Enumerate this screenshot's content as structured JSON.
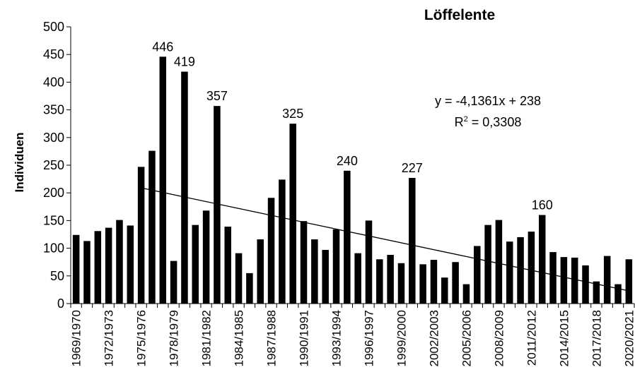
{
  "chart_data": {
    "type": "bar",
    "title": "Löffelente",
    "xlabel": "",
    "ylabel": "Individuen",
    "ylim": [
      0,
      500
    ],
    "yticks": [
      "0",
      "50",
      "100",
      "150",
      "200",
      "250",
      "300",
      "350",
      "400",
      "450",
      "500"
    ],
    "categories": [
      "1969/1970",
      "1970/1971",
      "1971/1972",
      "1972/1973",
      "1973/1974",
      "1974/1975",
      "1975/1976",
      "1976/1977",
      "1977/1978",
      "1978/1979",
      "1979/1980",
      "1980/1981",
      "1981/1982",
      "1982/1983",
      "1983/1984",
      "1984/1985",
      "1985/1986",
      "1986/1987",
      "1987/1988",
      "1988/1989",
      "1989/1990",
      "1990/1991",
      "1991/1992",
      "1992/1993",
      "1993/1994",
      "1994/1995",
      "1995/1996",
      "1996/1997",
      "1997/1998",
      "1998/1999",
      "1999/2000",
      "2000/2001",
      "2001/2002",
      "2002/2003",
      "2003/2004",
      "2004/2005",
      "2005/2006",
      "2006/2007",
      "2007/2008",
      "2008/2009",
      "2009/2010",
      "2010/2011",
      "2011/2012",
      "2012/2013",
      "2013/2014",
      "2014/2015",
      "2015/2016",
      "2016/2017",
      "2017/2018",
      "2018/2019",
      "2019/2020",
      "2020/2021"
    ],
    "tick_labels": [
      "1969/1970",
      "1972/1973",
      "1975/1976",
      "1978/1979",
      "1981/1982",
      "1984/1985",
      "1987/1988",
      "1990/1991",
      "1993/1994",
      "1996/1997",
      "1999/2000",
      "2002/2003",
      "2005/2006",
      "2008/2009",
      "2011/2012",
      "2014/2015",
      "2017/2018",
      "2020/2021"
    ],
    "values": [
      124,
      113,
      131,
      137,
      151,
      141,
      247,
      276,
      446,
      77,
      419,
      142,
      168,
      357,
      139,
      91,
      55,
      116,
      191,
      224,
      325,
      149,
      116,
      97,
      134,
      240,
      91,
      150,
      80,
      88,
      73,
      227,
      71,
      79,
      47,
      75,
      35,
      104,
      142,
      151,
      112,
      120,
      130,
      160,
      93,
      84,
      83,
      69,
      40,
      86,
      35,
      80
    ],
    "data_labels": [
      {
        "category": "1977/1978",
        "text": "446"
      },
      {
        "category": "1979/1980",
        "text": "419"
      },
      {
        "category": "1982/1983",
        "text": "357"
      },
      {
        "category": "1989/1990",
        "text": "325"
      },
      {
        "category": "1994/1995",
        "text": "240"
      },
      {
        "category": "2000/2001",
        "text": "227"
      },
      {
        "category": "2012/2013",
        "text": "160"
      }
    ],
    "trendline": {
      "slope": -4.1361,
      "intercept": 238,
      "from_index": 6,
      "to_index": 51
    },
    "equation_text": "y = -4,1361x + 238",
    "r2_prefix": "R",
    "r2_sup": "2",
    "r2_value_text": " = 0,3308",
    "colors": {
      "bars": "#000000",
      "axis": "#000000",
      "trend": "#000000",
      "background": "#ffffff"
    }
  }
}
